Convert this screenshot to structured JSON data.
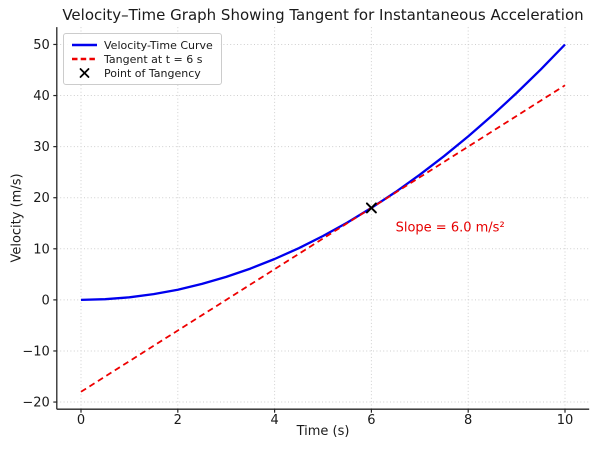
{
  "chart_data": {
    "type": "line",
    "title": "Velocity–Time Graph Showing Tangent for Instantaneous Acceleration",
    "xlabel": "Time (s)",
    "ylabel": "Velocity (m/s)",
    "xlim": [
      -0.5,
      10.5
    ],
    "ylim": [
      -21.4,
      53.4
    ],
    "xticks": [
      0,
      2,
      4,
      6,
      8,
      10
    ],
    "yticks": [
      -20,
      -10,
      0,
      10,
      20,
      30,
      40,
      50
    ],
    "grid": true,
    "legend_position": "upper-left",
    "series": [
      {
        "id": "velocity-time-curve",
        "name": "Velocity-Time Curve",
        "type": "curve",
        "style": "solid",
        "color": "#0000ee",
        "width": 2.3,
        "equation": "v = 0.5 t^2",
        "x": [
          0,
          0.5,
          1,
          1.5,
          2,
          2.5,
          3,
          3.5,
          4,
          4.5,
          5,
          5.5,
          6,
          6.5,
          7,
          7.5,
          8,
          8.5,
          9,
          9.5,
          10
        ],
        "y": [
          0,
          0.125,
          0.5,
          1.125,
          2,
          3.125,
          4.5,
          6.125,
          8,
          10.125,
          12.5,
          15.125,
          18,
          21.125,
          24.5,
          28.125,
          32,
          36.125,
          40.5,
          45.125,
          50
        ]
      },
      {
        "id": "tangent-line",
        "name": "Tangent at t = 6 s",
        "type": "line",
        "style": "dashed",
        "color": "#ee0000",
        "width": 1.8,
        "equation": "v = 6t - 18",
        "x": [
          0,
          10
        ],
        "y": [
          -18,
          42
        ]
      },
      {
        "id": "point-of-tangency",
        "name": "Point of Tangency",
        "type": "marker",
        "marker": "x",
        "color": "#000000",
        "x": [
          6
        ],
        "y": [
          18
        ]
      }
    ],
    "annotation": {
      "text": "Slope = 6.0 m/s²",
      "x": 6.5,
      "y": 14,
      "color": "#e60000"
    },
    "colors": {
      "grid": "#cfcfcf",
      "axis": "#262626",
      "text": "#1a1a1a",
      "background": "#ffffff"
    }
  }
}
